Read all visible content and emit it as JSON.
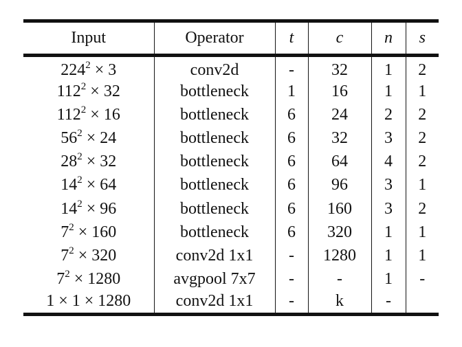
{
  "table": {
    "headers": {
      "input": "Input",
      "operator": "Operator",
      "t": "t",
      "c": "c",
      "n": "n",
      "s": "s"
    },
    "rows": [
      {
        "input_base": "224",
        "input_exp": "2",
        "input_rest": " × 3",
        "operator": "conv2d",
        "t": "-",
        "c": "32",
        "n": "1",
        "s": "2"
      },
      {
        "input_base": "112",
        "input_exp": "2",
        "input_rest": " × 32",
        "operator": "bottleneck",
        "t": "1",
        "c": "16",
        "n": "1",
        "s": "1"
      },
      {
        "input_base": "112",
        "input_exp": "2",
        "input_rest": " × 16",
        "operator": "bottleneck",
        "t": "6",
        "c": "24",
        "n": "2",
        "s": "2"
      },
      {
        "input_base": "56",
        "input_exp": "2",
        "input_rest": " × 24",
        "operator": "bottleneck",
        "t": "6",
        "c": "32",
        "n": "3",
        "s": "2"
      },
      {
        "input_base": "28",
        "input_exp": "2",
        "input_rest": " × 32",
        "operator": "bottleneck",
        "t": "6",
        "c": "64",
        "n": "4",
        "s": "2"
      },
      {
        "input_base": "14",
        "input_exp": "2",
        "input_rest": " × 64",
        "operator": "bottleneck",
        "t": "6",
        "c": "96",
        "n": "3",
        "s": "1"
      },
      {
        "input_base": "14",
        "input_exp": "2",
        "input_rest": " × 96",
        "operator": "bottleneck",
        "t": "6",
        "c": "160",
        "n": "3",
        "s": "2"
      },
      {
        "input_base": "7",
        "input_exp": "2",
        "input_rest": " × 160",
        "operator": "bottleneck",
        "t": "6",
        "c": "320",
        "n": "1",
        "s": "1"
      },
      {
        "input_base": "7",
        "input_exp": "2",
        "input_rest": " × 320",
        "operator": "conv2d 1x1",
        "t": "-",
        "c": "1280",
        "n": "1",
        "s": "1"
      },
      {
        "input_base": "7",
        "input_exp": "2",
        "input_rest": " × 1280",
        "operator": "avgpool 7x7",
        "t": "-",
        "c": "-",
        "n": "1",
        "s": "-"
      },
      {
        "input_base": "1 × 1 × 1280",
        "input_exp": "",
        "input_rest": "",
        "operator": "conv2d 1x1",
        "t": "-",
        "c": "k",
        "n": "-",
        "s": ""
      }
    ]
  }
}
